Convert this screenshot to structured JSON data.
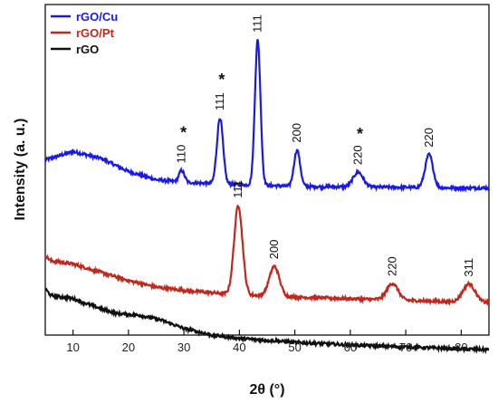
{
  "chart_data": {
    "type": "line",
    "title": "",
    "xlabel": "2θ (°)",
    "ylabel": "Intensity (a. u.)",
    "xlim": [
      5,
      85
    ],
    "xticks": [
      10,
      20,
      30,
      40,
      50,
      60,
      70,
      80
    ],
    "yticks_shown": false,
    "grid": false,
    "legend": {
      "placement": "top-left",
      "entries": [
        {
          "name": "rGO/Cu",
          "color": "#1a1ae6"
        },
        {
          "name": "rGO/Pt",
          "color": "#c0281e"
        },
        {
          "name": "rGO",
          "color": "#111111"
        }
      ]
    },
    "ylim": [
      0,
      10
    ],
    "series": [
      {
        "name": "rGO/Cu",
        "color": "#1a1ae6",
        "baseline": [
          [
            5,
            5.3
          ],
          [
            10,
            5.55
          ],
          [
            15,
            5.35
          ],
          [
            20,
            4.95
          ],
          [
            25,
            4.7
          ],
          [
            30,
            4.62
          ],
          [
            40,
            4.55
          ],
          [
            50,
            4.5
          ],
          [
            60,
            4.48
          ],
          [
            70,
            4.47
          ],
          [
            80,
            4.45
          ],
          [
            85,
            4.45
          ]
        ],
        "peaks": [
          {
            "x": 29.6,
            "height": 0.35,
            "width": 0.5
          },
          {
            "x": 36.5,
            "height": 2.0,
            "width": 0.55
          },
          {
            "x": 43.3,
            "height": 4.4,
            "width": 0.5
          },
          {
            "x": 50.4,
            "height": 1.1,
            "width": 0.55
          },
          {
            "x": 61.4,
            "height": 0.45,
            "width": 0.9
          },
          {
            "x": 74.2,
            "height": 1.0,
            "width": 0.7
          }
        ]
      },
      {
        "name": "rGO/Pt",
        "color": "#c0281e",
        "baseline": [
          [
            5,
            2.4
          ],
          [
            6,
            2.25
          ],
          [
            10,
            2.15
          ],
          [
            15,
            1.9
          ],
          [
            20,
            1.65
          ],
          [
            25,
            1.45
          ],
          [
            30,
            1.35
          ],
          [
            40,
            1.22
          ],
          [
            50,
            1.15
          ],
          [
            60,
            1.1
          ],
          [
            70,
            1.05
          ],
          [
            80,
            1.0
          ],
          [
            85,
            0.98
          ]
        ],
        "peaks": [
          {
            "x": 39.8,
            "height": 2.7,
            "width": 0.75
          },
          {
            "x": 46.3,
            "height": 0.9,
            "width": 0.9
          },
          {
            "x": 67.6,
            "height": 0.5,
            "width": 1.0
          },
          {
            "x": 81.4,
            "height": 0.55,
            "width": 1.1
          }
        ]
      },
      {
        "name": "rGO",
        "color": "#111111",
        "baseline": [
          [
            5,
            1.4
          ],
          [
            6,
            1.2
          ],
          [
            10,
            1.1
          ],
          [
            15,
            0.8
          ],
          [
            18,
            0.65
          ],
          [
            22,
            0.6
          ],
          [
            26,
            0.45
          ],
          [
            30,
            0.2
          ],
          [
            35,
            0.0
          ],
          [
            40,
            -0.1
          ],
          [
            50,
            -0.22
          ],
          [
            60,
            -0.3
          ],
          [
            70,
            -0.36
          ],
          [
            80,
            -0.42
          ],
          [
            85,
            -0.44
          ]
        ],
        "peaks": []
      }
    ],
    "annotations": [
      {
        "text": "110",
        "x": 29.6,
        "series": "rGO/Cu",
        "star": true
      },
      {
        "text": "111",
        "x": 36.5,
        "series": "rGO/Cu",
        "star": true
      },
      {
        "text": "111",
        "x": 43.3,
        "series": "rGO/Cu",
        "star": false
      },
      {
        "text": "200",
        "x": 50.4,
        "series": "rGO/Cu",
        "star": false
      },
      {
        "text": "220",
        "x": 61.4,
        "series": "rGO/Cu",
        "star": true
      },
      {
        "text": "220",
        "x": 74.2,
        "series": "rGO/Cu",
        "star": false
      },
      {
        "text": "111",
        "x": 39.8,
        "series": "rGO/Pt",
        "star": false
      },
      {
        "text": "200",
        "x": 46.3,
        "series": "rGO/Pt",
        "star": false
      },
      {
        "text": "220",
        "x": 67.6,
        "series": "rGO/Pt",
        "star": false
      },
      {
        "text": "311",
        "x": 81.4,
        "series": "rGO/Pt",
        "star": false
      }
    ],
    "star_symbol": "*"
  }
}
